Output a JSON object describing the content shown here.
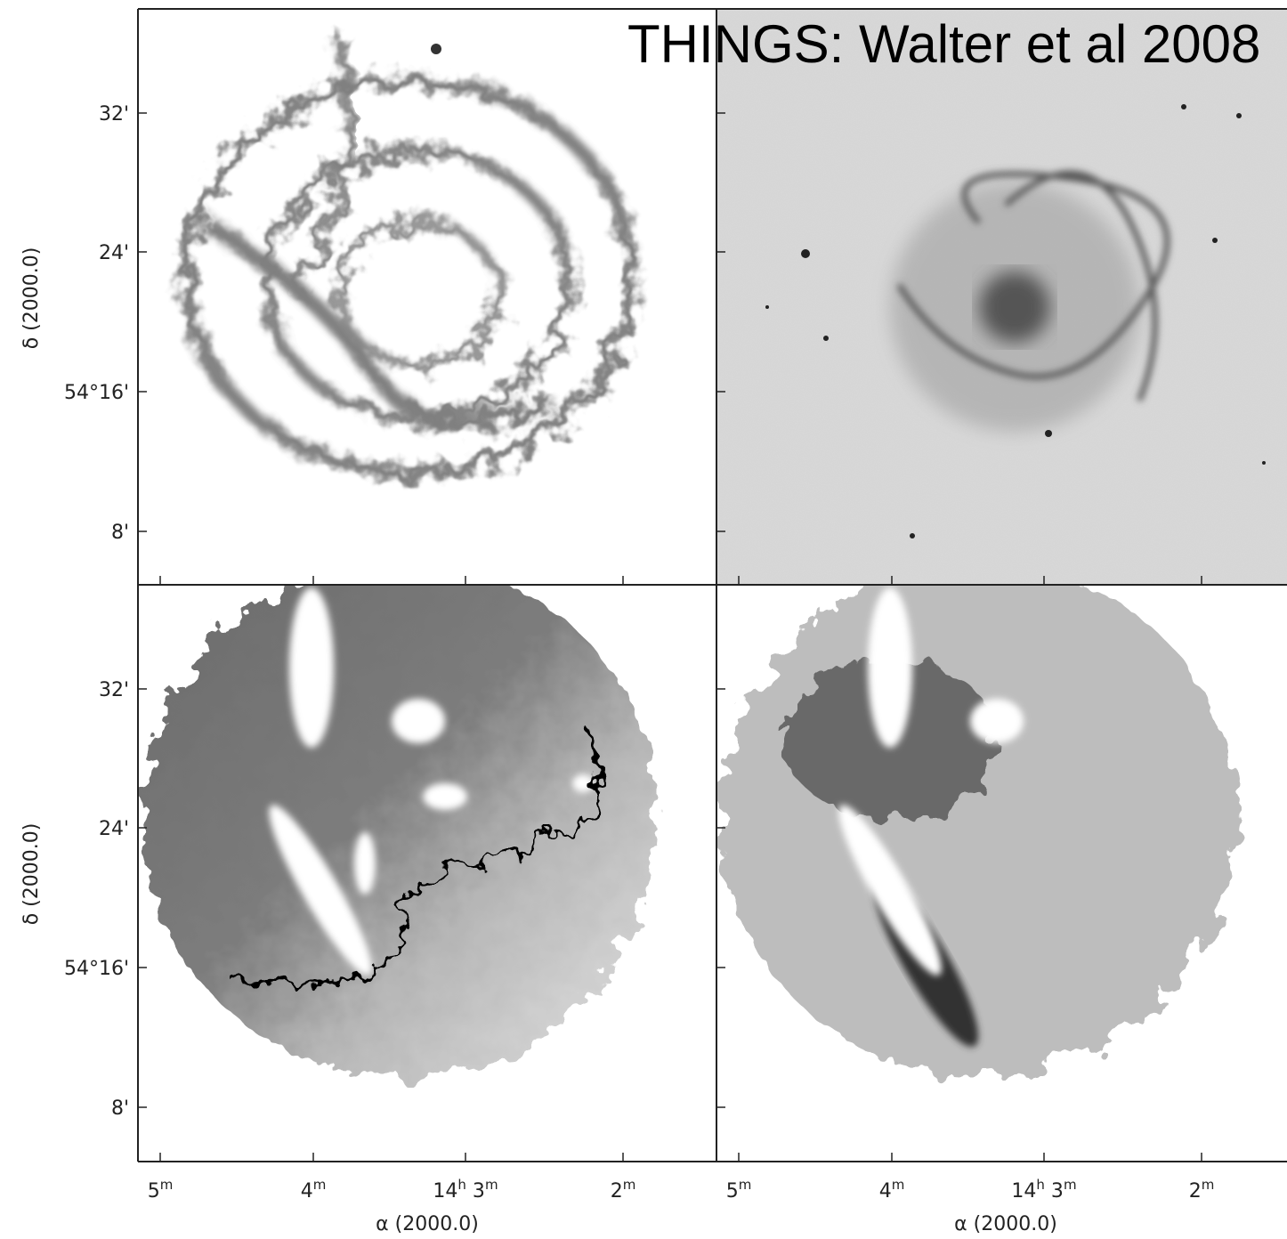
{
  "title": "THINGS: Walter et al 2008",
  "rows": [
    {
      "y_axis_label": "δ (2000.0)",
      "y_ticks": [
        "32'",
        "24'",
        "54°16'",
        "8'"
      ]
    },
    {
      "y_axis_label": "δ (2000.0)",
      "y_ticks": [
        "32'",
        "24'",
        "54°16'",
        "8'"
      ]
    }
  ],
  "columns": [
    {
      "x_axis_label": "α (2000.0)",
      "x_ticks": [
        [
          {
            "t": "5"
          },
          {
            "sup": "m"
          }
        ],
        [
          {
            "t": "4"
          },
          {
            "sup": "m"
          }
        ],
        [
          {
            "t": "14"
          },
          {
            "sup": "h"
          },
          {
            "t": " 3"
          },
          {
            "sup": "m"
          }
        ],
        [
          {
            "t": "2"
          },
          {
            "sup": "m"
          }
        ]
      ]
    },
    {
      "x_axis_label": "α (2000.0)",
      "x_ticks": [
        [
          {
            "t": "5"
          },
          {
            "sup": "m"
          }
        ],
        [
          {
            "t": "4"
          },
          {
            "sup": "m"
          }
        ],
        [
          {
            "t": "14"
          },
          {
            "sup": "h"
          },
          {
            "t": " 3"
          },
          {
            "sup": "m"
          }
        ],
        [
          {
            "t": "2"
          },
          {
            "sup": "m"
          }
        ]
      ]
    }
  ]
}
